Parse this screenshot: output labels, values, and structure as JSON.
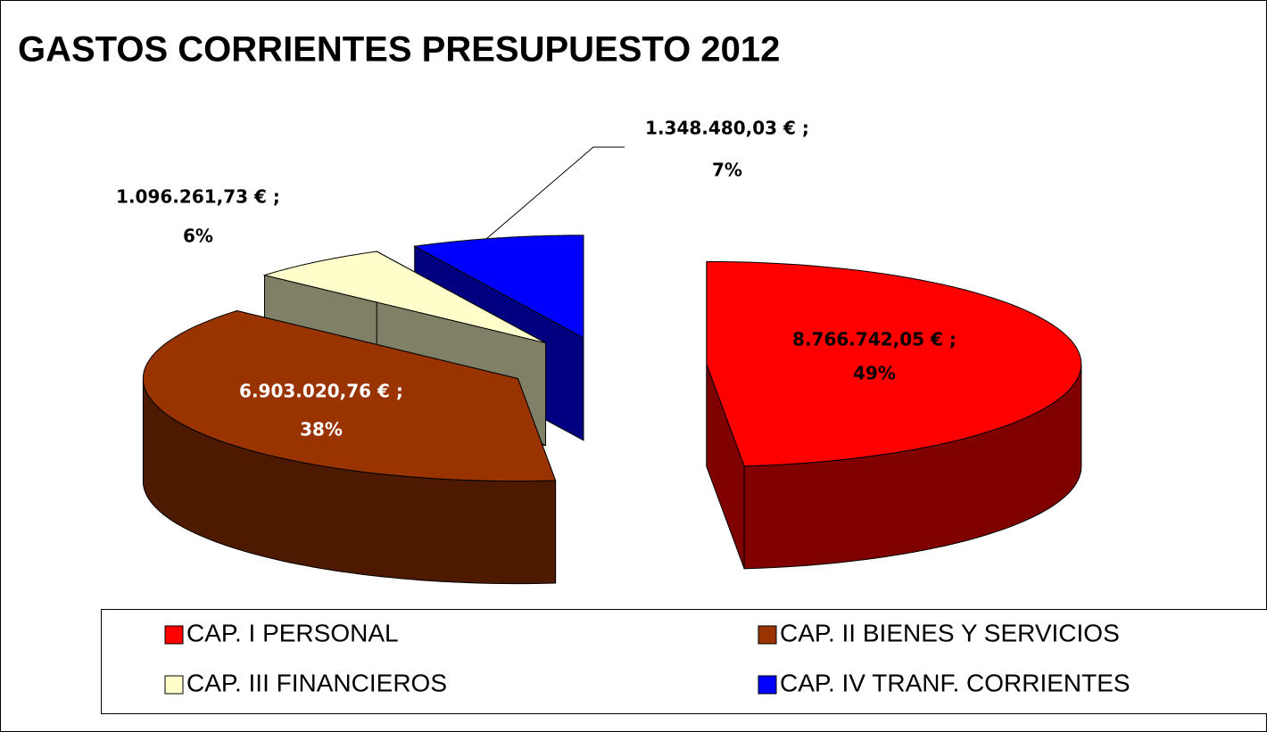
{
  "chart_data": {
    "type": "pie3d",
    "title": "GASTOS CORRIENTES PRESUPUESTO 2012",
    "categories": [
      "CAP. I PERSONAL",
      "CAP. II BIENES Y SERVICIOS",
      "CAP. III FINANCIEROS",
      "CAP. IV TRANF. CORRIENTES"
    ],
    "values": [
      8766742.05,
      6903020.76,
      1096261.73,
      1348480.03
    ],
    "value_labels": [
      "8.766.742,05 € ;",
      "6.903.020,76 € ;",
      "1.096.261,73 € ;",
      "1.348.480,03 € ;"
    ],
    "percentages": [
      49,
      38,
      6,
      7
    ],
    "percentage_labels": [
      "49%",
      "38%",
      "6%",
      "7%"
    ],
    "colors": [
      "#ff0000",
      "#993300",
      "#ffffcc",
      "#0000ff"
    ],
    "side_colors": [
      "#800000",
      "#4d1a00",
      "#808066",
      "#000080"
    ]
  }
}
